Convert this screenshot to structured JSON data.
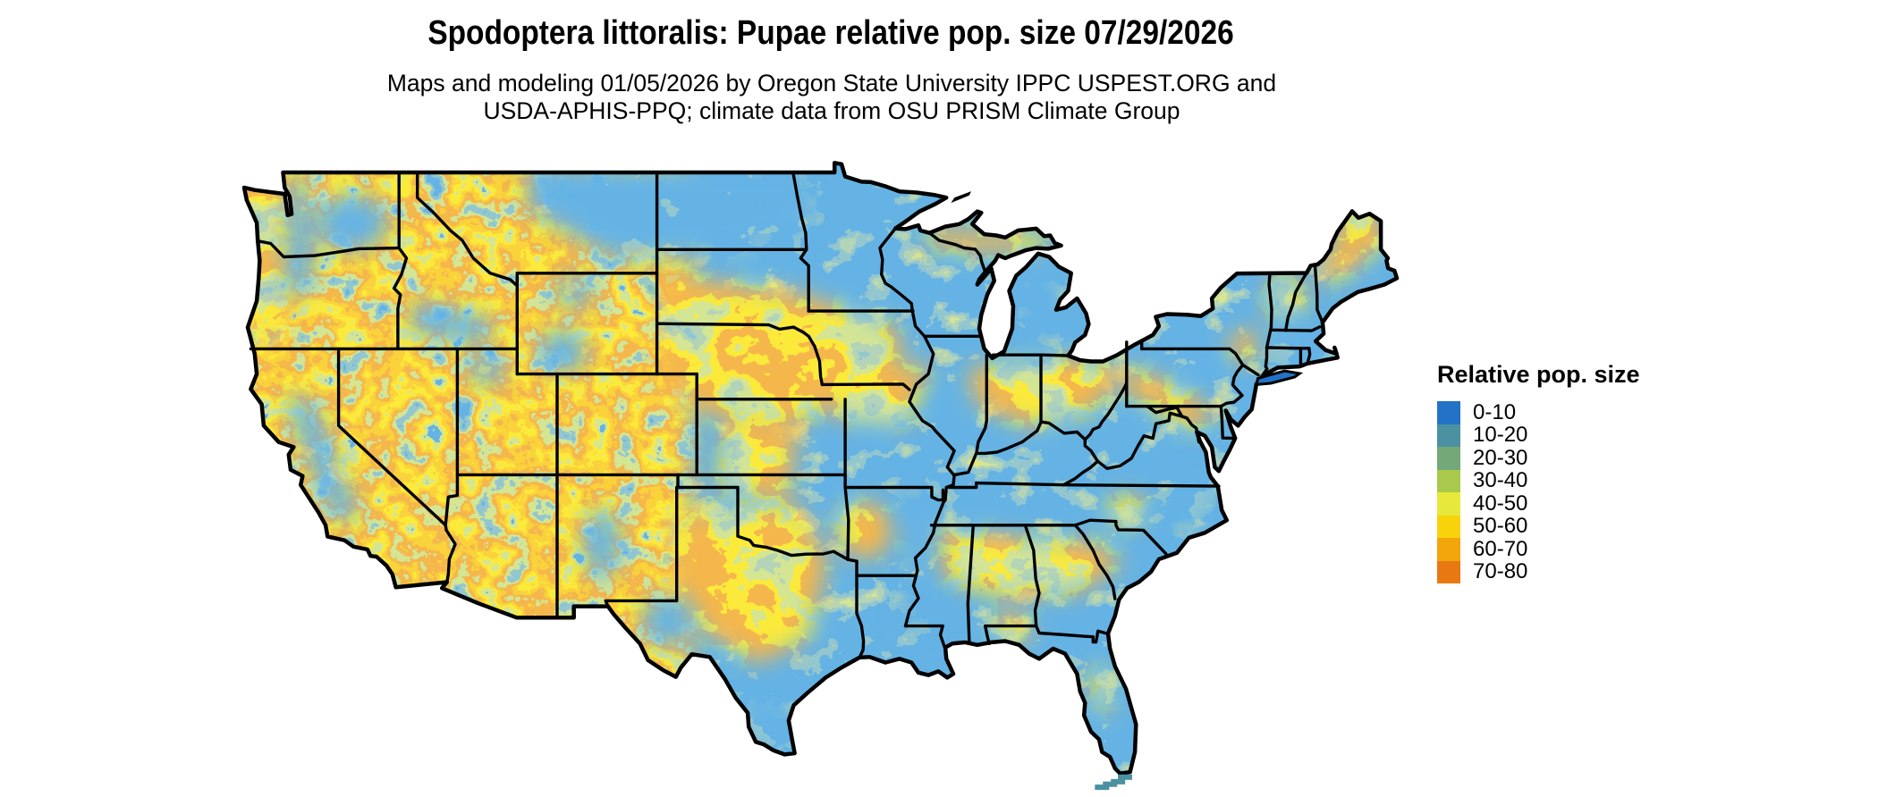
{
  "title": "Spodoptera littoralis: Pupae relative pop. size 07/29/2026",
  "subtitle": {
    "line1": "Maps and modeling 01/05/2026 by Oregon State University IPPC USPEST.ORG and",
    "line2": "USDA-APHIS-PPQ; climate data from OSU PRISM Climate Group"
  },
  "legend": {
    "title": "Relative pop. size",
    "entries": [
      {
        "label": "0-10",
        "color": "#2273C8"
      },
      {
        "label": "10-20",
        "color": "#4B91A2"
      },
      {
        "label": "20-30",
        "color": "#74A878"
      },
      {
        "label": "30-40",
        "color": "#A8C94C"
      },
      {
        "label": "40-50",
        "color": "#E6E93B"
      },
      {
        "label": "50-60",
        "color": "#F8D30C"
      },
      {
        "label": "60-70",
        "color": "#F3A50C"
      },
      {
        "label": "70-80",
        "color": "#E87812"
      }
    ]
  },
  "map": {
    "type": "choropleth-raster",
    "region": "Contiguous United States",
    "variable": "Relative pop. size"
  }
}
